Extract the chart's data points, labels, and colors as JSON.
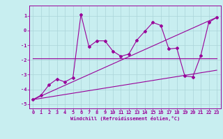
{
  "xlabel": "Windchill (Refroidissement éolien,°C)",
  "background_color": "#c8eef0",
  "grid_color": "#aad4d8",
  "line_color": "#990099",
  "xlim": [
    -0.5,
    23.5
  ],
  "ylim": [
    -5.3,
    1.7
  ],
  "yticks": [
    1,
    0,
    -1,
    -2,
    -3,
    -4,
    -5
  ],
  "xticks": [
    0,
    1,
    2,
    3,
    4,
    5,
    6,
    7,
    8,
    9,
    10,
    11,
    12,
    13,
    14,
    15,
    16,
    17,
    18,
    19,
    20,
    21,
    22,
    23
  ],
  "series1_x": [
    0,
    1,
    2,
    3,
    4,
    5,
    6,
    7,
    8,
    9,
    10,
    11,
    12,
    13,
    14,
    15,
    16,
    17,
    18,
    19,
    20,
    21,
    22,
    23
  ],
  "series1_y": [
    -4.7,
    -4.4,
    -3.7,
    -3.3,
    -3.5,
    -3.2,
    1.1,
    -1.1,
    -0.7,
    -0.7,
    -1.4,
    -1.75,
    -1.6,
    -0.65,
    -0.05,
    0.55,
    0.35,
    -1.25,
    -1.2,
    -3.1,
    -3.15,
    -1.7,
    0.55,
    0.9
  ],
  "series2_x": [
    0,
    23
  ],
  "series2_y": [
    -1.9,
    -1.9
  ],
  "series3_x": [
    0,
    23
  ],
  "series3_y": [
    -4.7,
    0.9
  ],
  "series4_x": [
    0,
    23
  ],
  "series4_y": [
    -4.7,
    -2.7
  ],
  "tick_fontsize": 5,
  "xlabel_fontsize": 5
}
